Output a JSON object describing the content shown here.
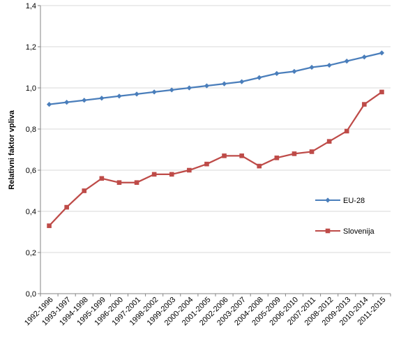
{
  "chart_data": {
    "type": "line",
    "title": "",
    "xlabel": "",
    "ylabel": "Relativni faktor vpliva",
    "ylim": [
      0,
      1.4
    ],
    "yticks": [
      "0,0",
      "0,2",
      "0,4",
      "0,6",
      "0,8",
      "1,0",
      "1,2",
      "1,4"
    ],
    "categories": [
      "1992-1996",
      "1993-1997",
      "1994-1998",
      "1995-1999",
      "1996-2000",
      "1997-2001",
      "1998-2002",
      "1999-2003",
      "2000-2004",
      "2001-2005",
      "2002-2006",
      "2003-2007",
      "2004-2008",
      "2005-2009",
      "2006-2010",
      "2007-2011",
      "2008-2012",
      "2009-2013",
      "2010-2014",
      "2011-2015"
    ],
    "grid": "horizontal",
    "legend_position": "right",
    "series": [
      {
        "name": "EU-28",
        "color": "#4a7ebb",
        "marker": "diamond",
        "values": [
          0.92,
          0.93,
          0.94,
          0.95,
          0.96,
          0.97,
          0.98,
          0.99,
          1.0,
          1.01,
          1.02,
          1.03,
          1.05,
          1.07,
          1.08,
          1.1,
          1.11,
          1.13,
          1.15,
          1.17
        ]
      },
      {
        "name": "Slovenija",
        "color": "#be4b48",
        "marker": "square",
        "values": [
          0.33,
          0.42,
          0.5,
          0.56,
          0.54,
          0.54,
          0.58,
          0.58,
          0.6,
          0.63,
          0.67,
          0.67,
          0.62,
          0.66,
          0.68,
          0.69,
          0.74,
          0.79,
          0.92,
          0.98
        ]
      }
    ]
  }
}
